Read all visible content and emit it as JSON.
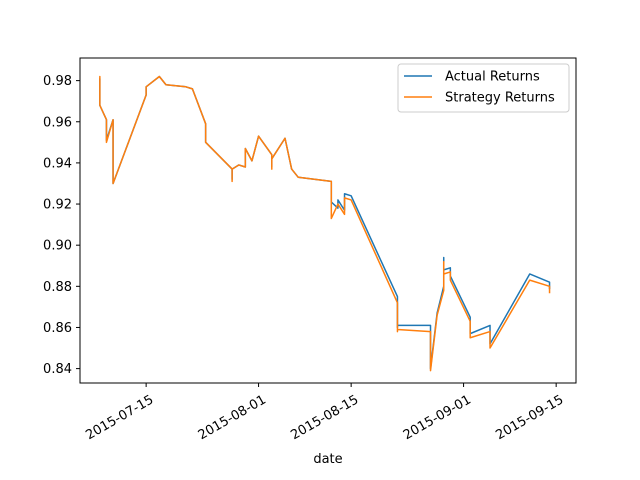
{
  "chart_data": {
    "type": "line",
    "title": "",
    "xlabel": "date",
    "ylabel": "",
    "x_ticks": [
      "2015-07-15",
      "2015-08-01",
      "2015-08-15",
      "2015-09-01",
      "2015-09-15"
    ],
    "y_ticks": [
      "0.84",
      "0.86",
      "0.88",
      "0.90",
      "0.92",
      "0.94",
      "0.96",
      "0.98"
    ],
    "xlim": [
      "2015-07-05",
      "2015-09-18"
    ],
    "ylim": [
      0.833,
      0.991
    ],
    "legend_position": "top-right",
    "grid": false,
    "series": [
      {
        "name": "Actual Returns",
        "color": "#1f77b4",
        "points": [
          [
            "2015-07-08",
            0.973
          ],
          [
            "2015-07-08",
            0.981
          ],
          [
            "2015-07-08",
            0.968
          ],
          [
            "2015-07-09",
            0.961
          ],
          [
            "2015-07-09",
            0.951
          ],
          [
            "2015-07-10",
            0.961
          ],
          [
            "2015-07-10",
            0.944
          ],
          [
            "2015-07-10",
            0.94
          ],
          [
            "2015-07-10",
            0.93
          ],
          [
            "2015-07-15",
            0.973
          ],
          [
            "2015-07-15",
            0.977
          ],
          [
            "2015-07-17",
            0.982
          ],
          [
            "2015-07-18",
            0.978
          ],
          [
            "2015-07-21",
            0.977
          ],
          [
            "2015-07-22",
            0.976
          ],
          [
            "2015-07-24",
            0.959
          ],
          [
            "2015-07-24",
            0.95
          ],
          [
            "2015-07-28",
            0.937
          ],
          [
            "2015-07-28",
            0.932
          ],
          [
            "2015-07-28",
            0.937
          ],
          [
            "2015-07-29",
            0.939
          ],
          [
            "2015-07-30",
            0.938
          ],
          [
            "2015-07-30",
            0.947
          ],
          [
            "2015-07-31",
            0.941
          ],
          [
            "2015-08-01",
            0.953
          ],
          [
            "2015-08-03",
            0.944
          ],
          [
            "2015-08-03",
            0.938
          ],
          [
            "2015-08-03",
            0.942
          ],
          [
            "2015-08-05",
            0.952
          ],
          [
            "2015-08-06",
            0.937
          ],
          [
            "2015-08-07",
            0.933
          ],
          [
            "2015-08-12",
            0.931
          ],
          [
            "2015-08-12",
            0.921
          ],
          [
            "2015-08-13",
            0.918
          ],
          [
            "2015-08-13",
            0.922
          ],
          [
            "2015-08-14",
            0.917
          ],
          [
            "2015-08-14",
            0.925
          ],
          [
            "2015-08-15",
            0.924
          ],
          [
            "2015-08-22",
            0.875
          ],
          [
            "2015-08-22",
            0.862
          ],
          [
            "2015-08-22",
            0.86
          ],
          [
            "2015-08-22",
            0.861
          ],
          [
            "2015-08-27",
            0.861
          ],
          [
            "2015-08-27",
            0.855
          ],
          [
            "2015-08-27",
            0.84
          ],
          [
            "2015-08-28",
            0.867
          ],
          [
            "2015-08-29",
            0.88
          ],
          [
            "2015-08-29",
            0.894
          ],
          [
            "2015-08-29",
            0.888
          ],
          [
            "2015-08-30",
            0.889
          ],
          [
            "2015-08-30",
            0.885
          ],
          [
            "2015-09-02",
            0.865
          ],
          [
            "2015-09-02",
            0.857
          ],
          [
            "2015-09-05",
            0.861
          ],
          [
            "2015-09-05",
            0.852
          ],
          [
            "2015-09-11",
            0.886
          ],
          [
            "2015-09-14",
            0.882
          ],
          [
            "2015-09-14",
            0.879
          ]
        ]
      },
      {
        "name": "Strategy Returns",
        "color": "#ff7f0e",
        "points": [
          [
            "2015-07-08",
            0.973
          ],
          [
            "2015-07-08",
            0.982
          ],
          [
            "2015-07-08",
            0.968
          ],
          [
            "2015-07-09",
            0.961
          ],
          [
            "2015-07-09",
            0.95
          ],
          [
            "2015-07-10",
            0.961
          ],
          [
            "2015-07-10",
            0.944
          ],
          [
            "2015-07-10",
            0.94
          ],
          [
            "2015-07-10",
            0.93
          ],
          [
            "2015-07-15",
            0.973
          ],
          [
            "2015-07-15",
            0.977
          ],
          [
            "2015-07-17",
            0.982
          ],
          [
            "2015-07-18",
            0.978
          ],
          [
            "2015-07-21",
            0.977
          ],
          [
            "2015-07-22",
            0.976
          ],
          [
            "2015-07-24",
            0.959
          ],
          [
            "2015-07-24",
            0.95
          ],
          [
            "2015-07-28",
            0.937
          ],
          [
            "2015-07-28",
            0.931
          ],
          [
            "2015-07-28",
            0.937
          ],
          [
            "2015-07-29",
            0.939
          ],
          [
            "2015-07-30",
            0.938
          ],
          [
            "2015-07-30",
            0.947
          ],
          [
            "2015-07-31",
            0.941
          ],
          [
            "2015-08-01",
            0.953
          ],
          [
            "2015-08-03",
            0.944
          ],
          [
            "2015-08-03",
            0.937
          ],
          [
            "2015-08-03",
            0.942
          ],
          [
            "2015-08-05",
            0.952
          ],
          [
            "2015-08-06",
            0.937
          ],
          [
            "2015-08-07",
            0.933
          ],
          [
            "2015-08-12",
            0.931
          ],
          [
            "2015-08-12",
            0.913
          ],
          [
            "2015-08-13",
            0.92
          ],
          [
            "2015-08-14",
            0.915
          ],
          [
            "2015-08-14",
            0.923
          ],
          [
            "2015-08-15",
            0.922
          ],
          [
            "2015-08-22",
            0.872
          ],
          [
            "2015-08-22",
            0.858
          ],
          [
            "2015-08-22",
            0.859
          ],
          [
            "2015-08-27",
            0.858
          ],
          [
            "2015-08-27",
            0.85
          ],
          [
            "2015-08-27",
            0.839
          ],
          [
            "2015-08-28",
            0.866
          ],
          [
            "2015-08-29",
            0.878
          ],
          [
            "2015-08-29",
            0.892
          ],
          [
            "2015-08-29",
            0.886
          ],
          [
            "2015-08-30",
            0.887
          ],
          [
            "2015-08-30",
            0.883
          ],
          [
            "2015-09-02",
            0.863
          ],
          [
            "2015-09-02",
            0.855
          ],
          [
            "2015-09-05",
            0.858
          ],
          [
            "2015-09-05",
            0.85
          ],
          [
            "2015-09-11",
            0.883
          ],
          [
            "2015-09-14",
            0.88
          ],
          [
            "2015-09-14",
            0.877
          ]
        ]
      }
    ]
  }
}
